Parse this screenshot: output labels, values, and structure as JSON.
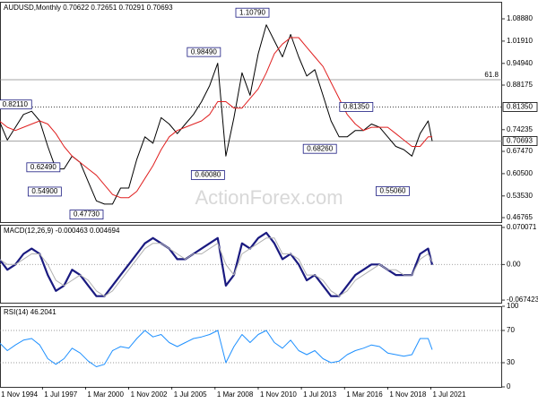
{
  "chart_data": [
    {
      "type": "line",
      "title": "AUDUSD,Monthly 0.70622 0.72651 0.70291 0.70693",
      "watermark": "ActionForex.com",
      "x": [
        "1994-11",
        "1995-05",
        "1995-11",
        "1996-05",
        "1996-11",
        "1997-05",
        "1997-11",
        "1998-05",
        "1998-11",
        "1999-05",
        "1999-11",
        "2000-05",
        "2000-11",
        "2001-05",
        "2001-11",
        "2002-05",
        "2002-11",
        "2003-05",
        "2003-11",
        "2004-05",
        "2004-11",
        "2005-05",
        "2005-11",
        "2006-05",
        "2006-11",
        "2007-05",
        "2007-11",
        "2008-05",
        "2008-11",
        "2009-05",
        "2009-11",
        "2010-05",
        "2010-11",
        "2011-05",
        "2011-11",
        "2012-05",
        "2012-11",
        "2013-05",
        "2013-11",
        "2014-05",
        "2014-11",
        "2015-05",
        "2015-11",
        "2016-05",
        "2016-11",
        "2017-05",
        "2017-11",
        "2018-05",
        "2018-11",
        "2019-05",
        "2019-11",
        "2020-05",
        "2020-11",
        "2021-05",
        "2021-08"
      ],
      "series": [
        {
          "name": "AUDUSD",
          "color": "#000000",
          "width": 1,
          "values": [
            0.77,
            0.71,
            0.75,
            0.79,
            0.8,
            0.77,
            0.69,
            0.62,
            0.62,
            0.66,
            0.64,
            0.58,
            0.52,
            0.51,
            0.51,
            0.56,
            0.56,
            0.65,
            0.72,
            0.7,
            0.78,
            0.76,
            0.73,
            0.76,
            0.79,
            0.83,
            0.88,
            0.95,
            0.66,
            0.78,
            0.92,
            0.85,
            0.98,
            1.07,
            1.02,
            0.97,
            1.04,
            0.97,
            0.91,
            0.93,
            0.85,
            0.77,
            0.72,
            0.72,
            0.74,
            0.74,
            0.76,
            0.75,
            0.72,
            0.69,
            0.68,
            0.66,
            0.73,
            0.77,
            0.70693
          ]
        },
        {
          "name": "MA",
          "color": "#e02020",
          "width": 1,
          "values": [
            0.77,
            0.75,
            0.74,
            0.75,
            0.76,
            0.77,
            0.76,
            0.73,
            0.69,
            0.66,
            0.64,
            0.62,
            0.6,
            0.57,
            0.54,
            0.53,
            0.53,
            0.55,
            0.59,
            0.63,
            0.68,
            0.72,
            0.74,
            0.75,
            0.76,
            0.77,
            0.79,
            0.83,
            0.83,
            0.81,
            0.81,
            0.84,
            0.87,
            0.92,
            0.98,
            1.01,
            1.03,
            1.03,
            1.0,
            0.97,
            0.94,
            0.89,
            0.84,
            0.79,
            0.76,
            0.74,
            0.75,
            0.75,
            0.75,
            0.73,
            0.71,
            0.69,
            0.69,
            0.72,
            0.72
          ]
        }
      ],
      "ylim": [
        0.4537,
        1.142
      ],
      "yticks": [
        {
          "value": 1.0888,
          "label": "1.08880"
        },
        {
          "value": 1.0191,
          "label": "1.01910"
        },
        {
          "value": 0.9494,
          "label": "0.94940"
        },
        0.88175,
        {
          "value": 0.74235,
          "label": "0.74235"
        },
        {
          "value": 0.6747,
          "label": "0.67470"
        },
        {
          "value": 0.605,
          "label": "0.60500"
        },
        {
          "value": 0.5353,
          "label": "0.53530"
        },
        0.46765
      ],
      "levels": [
        {
          "value": 0.8135,
          "label": "0.81350",
          "style": "dotted",
          "marker": "axis"
        },
        {
          "value": 0.70693,
          "label": "0.70693",
          "style": "solid",
          "marker": "axis"
        },
        {
          "value": 0.8985,
          "label": "61.8",
          "style": "solid",
          "marker": "inside"
        }
      ],
      "annotations": [
        {
          "x": "2011-07",
          "value": 1.1079,
          "label": "1.10790"
        },
        {
          "x": "2008-07",
          "value": 0.9849,
          "label": "0.98490"
        },
        {
          "x": "1996-11",
          "value": 0.8211,
          "label": "0.82110"
        },
        {
          "x": "1998-08",
          "value": 0.6249,
          "label": "0.62490"
        },
        {
          "x": "1998-09",
          "value": 0.549,
          "label": "0.54900"
        },
        {
          "x": "2001-04",
          "value": 0.4773,
          "label": "0.47730"
        },
        {
          "x": "2008-10",
          "value": 0.6008,
          "label": "0.60080"
        },
        {
          "x": "2015-09",
          "value": 0.6826,
          "label": "0.68260"
        },
        {
          "x": "2017-12",
          "value": 0.8135,
          "label": "0.81350"
        },
        {
          "x": "2020-03",
          "value": 0.5506,
          "label": "0.55060"
        }
      ]
    },
    {
      "type": "line",
      "title": "MACD(12,26,9) -0.000463 0.004694",
      "x": [
        "1994-11",
        "1995-05",
        "1995-11",
        "1996-05",
        "1996-11",
        "1997-05",
        "1997-11",
        "1998-05",
        "1998-11",
        "1999-05",
        "1999-11",
        "2000-05",
        "2000-11",
        "2001-05",
        "2001-11",
        "2002-05",
        "2002-11",
        "2003-05",
        "2003-11",
        "2004-05",
        "2004-11",
        "2005-05",
        "2005-11",
        "2006-05",
        "2006-11",
        "2007-05",
        "2007-11",
        "2008-05",
        "2008-11",
        "2009-05",
        "2009-11",
        "2010-05",
        "2010-11",
        "2011-05",
        "2011-11",
        "2012-05",
        "2012-11",
        "2013-05",
        "2013-11",
        "2014-05",
        "2014-11",
        "2015-05",
        "2015-11",
        "2016-05",
        "2016-11",
        "2017-05",
        "2017-11",
        "2018-05",
        "2018-11",
        "2019-05",
        "2019-11",
        "2020-05",
        "2020-11",
        "2021-05",
        "2021-08"
      ],
      "series": [
        {
          "name": "MACD",
          "color": "#1a1a80",
          "width": 2.2,
          "values": [
            0.01,
            -0.01,
            0.0,
            0.02,
            0.03,
            0.02,
            -0.02,
            -0.05,
            -0.04,
            -0.01,
            -0.02,
            -0.04,
            -0.06,
            -0.06,
            -0.04,
            -0.02,
            0.0,
            0.02,
            0.04,
            0.05,
            0.04,
            0.03,
            0.01,
            0.01,
            0.02,
            0.03,
            0.04,
            0.05,
            -0.04,
            -0.02,
            0.04,
            0.03,
            0.05,
            0.06,
            0.04,
            0.01,
            0.02,
            0.0,
            -0.03,
            -0.02,
            -0.04,
            -0.06,
            -0.06,
            -0.04,
            -0.02,
            -0.01,
            0.0,
            0.0,
            -0.01,
            -0.02,
            -0.02,
            -0.02,
            0.02,
            0.03,
            -0.000463
          ]
        },
        {
          "name": "Signal",
          "color": "#b0b0b0",
          "width": 1,
          "values": [
            0.01,
            0.0,
            0.0,
            0.01,
            0.02,
            0.02,
            0.0,
            -0.03,
            -0.04,
            -0.03,
            -0.02,
            -0.03,
            -0.05,
            -0.06,
            -0.05,
            -0.03,
            -0.01,
            0.01,
            0.03,
            0.04,
            0.04,
            0.03,
            0.02,
            0.01,
            0.02,
            0.02,
            0.03,
            0.04,
            0.0,
            -0.02,
            0.02,
            0.03,
            0.04,
            0.05,
            0.05,
            0.02,
            0.02,
            0.01,
            -0.02,
            -0.02,
            -0.03,
            -0.05,
            -0.06,
            -0.05,
            -0.03,
            -0.02,
            -0.01,
            0.0,
            -0.01,
            -0.01,
            -0.02,
            -0.02,
            0.01,
            0.02,
            0.004694
          ]
        }
      ],
      "ylim": [
        -0.0724,
        0.0751
      ],
      "yticks": [
        0.070071,
        {
          "value": 0,
          "label": "0.00"
        },
        -0.067423
      ],
      "zero_line": true
    },
    {
      "type": "line",
      "title": "RSI(14) 46.2041",
      "x": [
        "1994-11",
        "1995-05",
        "1995-11",
        "1996-05",
        "1996-11",
        "1997-05",
        "1997-11",
        "1998-05",
        "1998-11",
        "1999-05",
        "1999-11",
        "2000-05",
        "2000-11",
        "2001-05",
        "2001-11",
        "2002-05",
        "2002-11",
        "2003-05",
        "2003-11",
        "2004-05",
        "2004-11",
        "2005-05",
        "2005-11",
        "2006-05",
        "2006-11",
        "2007-05",
        "2007-11",
        "2008-05",
        "2008-11",
        "2009-05",
        "2009-11",
        "2010-05",
        "2010-11",
        "2011-05",
        "2011-11",
        "2012-05",
        "2012-11",
        "2013-05",
        "2013-11",
        "2014-05",
        "2014-11",
        "2015-05",
        "2015-11",
        "2016-05",
        "2016-11",
        "2017-05",
        "2017-11",
        "2018-05",
        "2018-11",
        "2019-05",
        "2019-11",
        "2020-05",
        "2020-11",
        "2021-05",
        "2021-08"
      ],
      "series": [
        {
          "name": "RSI",
          "color": "#1e90ff",
          "width": 1,
          "values": [
            55,
            45,
            52,
            58,
            60,
            52,
            35,
            28,
            35,
            48,
            42,
            32,
            25,
            28,
            45,
            50,
            48,
            60,
            70,
            62,
            65,
            55,
            50,
            55,
            60,
            62,
            65,
            70,
            30,
            50,
            65,
            55,
            65,
            70,
            55,
            48,
            58,
            45,
            40,
            45,
            35,
            30,
            32,
            40,
            45,
            48,
            52,
            50,
            42,
            40,
            38,
            40,
            60,
            60,
            46.2041
          ]
        }
      ],
      "ylim": [
        0,
        100
      ],
      "yticks": [
        100,
        70,
        30,
        0
      ],
      "guides": [
        70,
        30
      ],
      "xticks": [
        {
          "value": "1994-11",
          "label": "1 Nov 1994"
        },
        {
          "value": "1997-07",
          "label": "1 Jul 1997"
        },
        {
          "value": "2000-03",
          "label": "1 Mar 2000"
        },
        {
          "value": "2002-11",
          "label": "1 Nov 2002"
        },
        {
          "value": "2005-07",
          "label": "1 Jul 2005"
        },
        {
          "value": "2008-03",
          "label": "1 Mar 2008"
        },
        {
          "value": "2010-11",
          "label": "1 Nov 2010"
        },
        {
          "value": "2013-07",
          "label": "1 Jul 2013"
        },
        {
          "value": "2016-03",
          "label": "1 Mar 2016"
        },
        {
          "value": "2018-11",
          "label": "1 Nov 2018"
        },
        {
          "value": "2021-07",
          "label": "1 Jul 2021"
        }
      ]
    }
  ]
}
